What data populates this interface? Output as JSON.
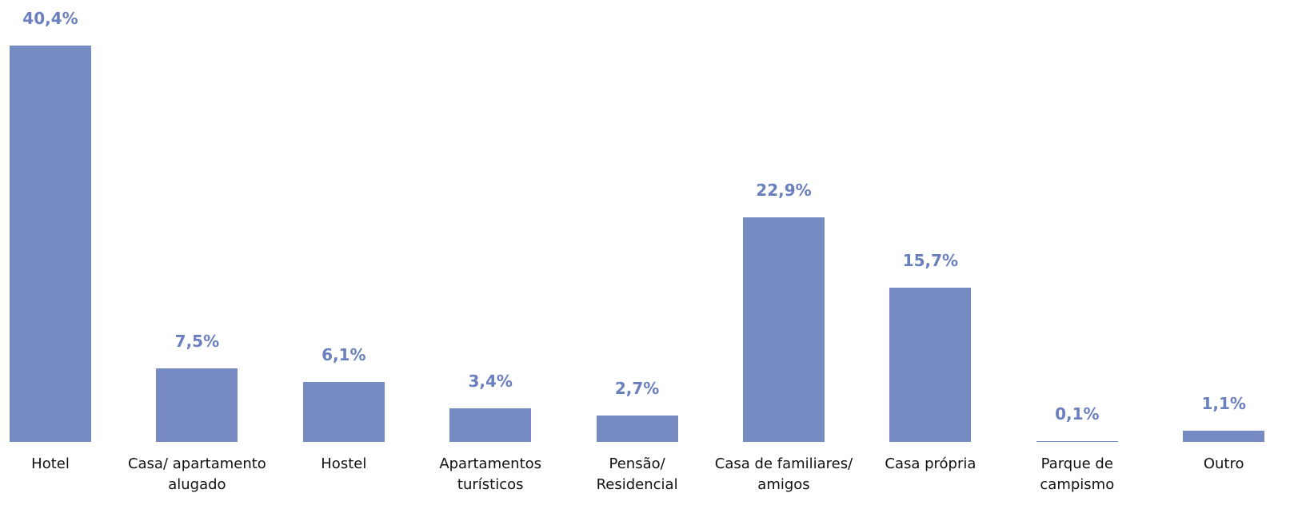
{
  "chart_data": {
    "type": "bar",
    "categories": [
      "Hotel",
      "Casa/ apartamento\nalugado",
      "Hostel",
      "Apartamentos\nturísticos",
      "Pensão/\nResidencial",
      "Casa de familiares/\namigos",
      "Casa própria",
      "Parque de\ncampismo",
      "Outro"
    ],
    "values": [
      40.4,
      7.5,
      6.1,
      3.4,
      2.7,
      22.9,
      15.7,
      0.1,
      1.1
    ],
    "value_labels": [
      "40,4%",
      "7,5%",
      "6,1%",
      "3,4%",
      "2,7%",
      "22,9%",
      "15,7%",
      "0,1%",
      "1,1%"
    ],
    "color": "#768bc2"
  }
}
